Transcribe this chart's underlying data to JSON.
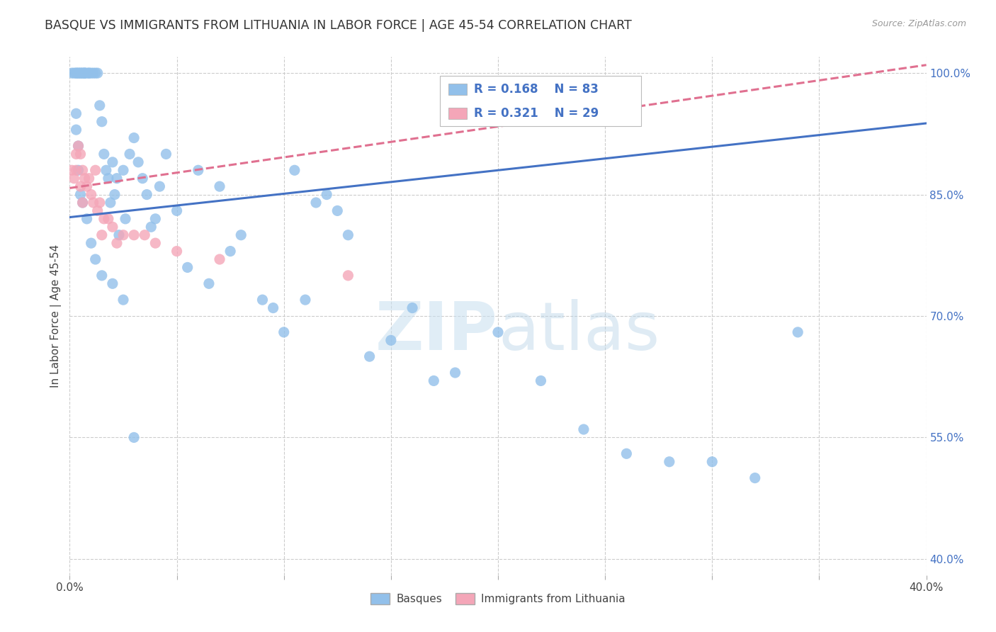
{
  "title": "BASQUE VS IMMIGRANTS FROM LITHUANIA IN LABOR FORCE | AGE 45-54 CORRELATION CHART",
  "source": "Source: ZipAtlas.com",
  "ylabel": "In Labor Force | Age 45-54",
  "xlim": [
    0.0,
    0.4
  ],
  "ylim": [
    0.38,
    1.02
  ],
  "xtick_vals": [
    0.0,
    0.05,
    0.1,
    0.15,
    0.2,
    0.25,
    0.3,
    0.35,
    0.4
  ],
  "xticklabels": [
    "0.0%",
    "",
    "",
    "",
    "",
    "",
    "",
    "",
    "40.0%"
  ],
  "ytick_positions": [
    0.4,
    0.55,
    0.7,
    0.85,
    1.0
  ],
  "yticklabels": [
    "40.0%",
    "55.0%",
    "70.0%",
    "85.0%",
    "100.0%"
  ],
  "grid_color": "#cccccc",
  "background_color": "#ffffff",
  "series1_color": "#92c0ea",
  "series2_color": "#f4a6b8",
  "series1_label": "Basques",
  "series2_label": "Immigrants from Lithuania",
  "trendline1_color": "#4472c4",
  "trendline2_color": "#e07090",
  "legend_text_color": "#4472c4",
  "watermark_color": "#c8dff0",
  "basque_x": [
    0.001,
    0.002,
    0.003,
    0.003,
    0.004,
    0.004,
    0.005,
    0.005,
    0.006,
    0.006,
    0.007,
    0.007,
    0.007,
    0.008,
    0.009,
    0.009,
    0.01,
    0.011,
    0.012,
    0.013,
    0.014,
    0.015,
    0.016,
    0.017,
    0.018,
    0.019,
    0.02,
    0.021,
    0.022,
    0.023,
    0.025,
    0.026,
    0.028,
    0.03,
    0.032,
    0.034,
    0.036,
    0.038,
    0.04,
    0.042,
    0.045,
    0.05,
    0.055,
    0.06,
    0.065,
    0.07,
    0.075,
    0.08,
    0.09,
    0.095,
    0.1,
    0.105,
    0.11,
    0.115,
    0.12,
    0.125,
    0.13,
    0.14,
    0.15,
    0.16,
    0.17,
    0.18,
    0.2,
    0.22,
    0.24,
    0.26,
    0.28,
    0.3,
    0.32,
    0.34,
    0.003,
    0.003,
    0.004,
    0.004,
    0.005,
    0.006,
    0.008,
    0.01,
    0.012,
    0.015,
    0.02,
    0.025,
    0.03
  ],
  "basque_y": [
    1.0,
    1.0,
    1.0,
    1.0,
    1.0,
    1.0,
    1.0,
    1.0,
    1.0,
    1.0,
    1.0,
    1.0,
    1.0,
    1.0,
    1.0,
    1.0,
    1.0,
    1.0,
    1.0,
    1.0,
    0.96,
    0.94,
    0.9,
    0.88,
    0.87,
    0.84,
    0.89,
    0.85,
    0.87,
    0.8,
    0.88,
    0.82,
    0.9,
    0.92,
    0.89,
    0.87,
    0.85,
    0.81,
    0.82,
    0.86,
    0.9,
    0.83,
    0.76,
    0.88,
    0.74,
    0.86,
    0.78,
    0.8,
    0.72,
    0.71,
    0.68,
    0.88,
    0.72,
    0.84,
    0.85,
    0.83,
    0.8,
    0.65,
    0.67,
    0.71,
    0.62,
    0.63,
    0.68,
    0.62,
    0.56,
    0.53,
    0.52,
    0.52,
    0.5,
    0.68,
    0.95,
    0.93,
    0.91,
    0.88,
    0.85,
    0.84,
    0.82,
    0.79,
    0.77,
    0.75,
    0.74,
    0.72,
    0.55
  ],
  "lithuania_x": [
    0.001,
    0.002,
    0.003,
    0.003,
    0.004,
    0.005,
    0.005,
    0.006,
    0.006,
    0.007,
    0.008,
    0.009,
    0.01,
    0.011,
    0.012,
    0.013,
    0.014,
    0.015,
    0.016,
    0.018,
    0.02,
    0.022,
    0.025,
    0.03,
    0.035,
    0.04,
    0.05,
    0.07,
    0.13
  ],
  "lithuania_y": [
    0.88,
    0.87,
    0.9,
    0.88,
    0.91,
    0.9,
    0.86,
    0.88,
    0.84,
    0.87,
    0.86,
    0.87,
    0.85,
    0.84,
    0.88,
    0.83,
    0.84,
    0.8,
    0.82,
    0.82,
    0.81,
    0.79,
    0.8,
    0.8,
    0.8,
    0.79,
    0.78,
    0.77,
    0.75
  ],
  "trendline1_x": [
    0.0,
    0.4
  ],
  "trendline1_y": [
    0.822,
    0.938
  ],
  "trendline2_x": [
    0.0,
    0.4
  ],
  "trendline2_y": [
    0.858,
    1.01
  ]
}
